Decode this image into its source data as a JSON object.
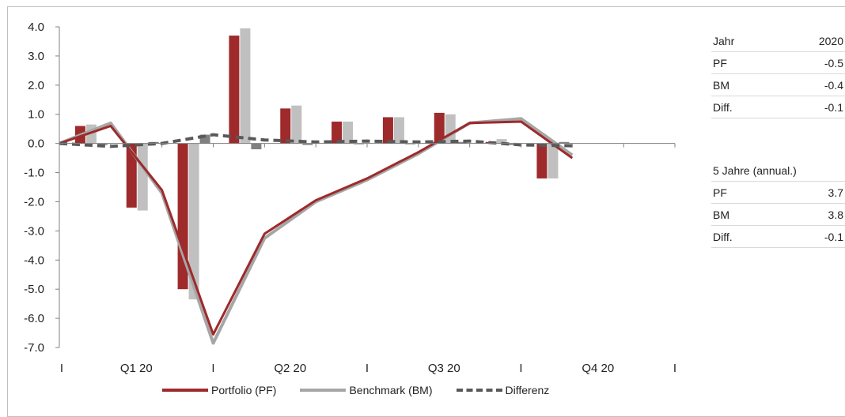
{
  "chart_data": {
    "type": "bar+line",
    "x_groups": [
      "Q1 20",
      "Q2 20",
      "Q3 20",
      "Q4 20"
    ],
    "y_ticks": [
      "4.0",
      "3.0",
      "2.0",
      "1.0",
      "0.0",
      "-1.0",
      "-2.0",
      "-3.0",
      "-4.0",
      "-5.0",
      "-6.0",
      "-7.0"
    ],
    "ylim": [
      -7,
      4
    ],
    "months": 12,
    "bars": {
      "pf": [
        0.6,
        -2.2,
        -5.0,
        3.7,
        1.2,
        0.75,
        0.9,
        1.05,
        0.05,
        -1.2,
        null,
        null
      ],
      "bm": [
        0.65,
        -2.3,
        -5.35,
        3.95,
        1.3,
        0.75,
        0.9,
        1.0,
        0.15,
        -1.2,
        null,
        null
      ],
      "diff": [
        -0.05,
        0.05,
        0.3,
        -0.2,
        -0.05,
        0.0,
        0.0,
        0.05,
        -0.05,
        0.05,
        null,
        null
      ]
    },
    "lines": {
      "pf": [
        0.0,
        0.6,
        -1.6,
        -6.55,
        -3.1,
        -1.95,
        -1.2,
        -0.3,
        0.7,
        0.75,
        -0.5
      ],
      "bm": [
        0.0,
        0.7,
        -1.7,
        -6.85,
        -3.25,
        -2.0,
        -1.25,
        -0.35,
        0.7,
        0.85,
        -0.4
      ],
      "diff": [
        0.0,
        -0.1,
        0.0,
        0.3,
        0.12,
        0.05,
        0.08,
        0.05,
        0.08,
        -0.05,
        -0.08
      ]
    },
    "series": [
      {
        "name": "Portfolio (PF)",
        "color": "#9e2a2b"
      },
      {
        "name": "Benchmark (BM)",
        "color": "#bfbfbf"
      },
      {
        "name": "Differenz",
        "color": "#595959"
      }
    ]
  },
  "legend": {
    "pf": "Portfolio (PF)",
    "bm": "Benchmark (BM)",
    "diff": "Differenz"
  },
  "table_year": {
    "header_label": "Jahr",
    "header_value": "2020",
    "rows": [
      {
        "label": "PF",
        "value": "-0.5"
      },
      {
        "label": "BM",
        "value": "-0.4"
      },
      {
        "label": "Diff.",
        "value": "-0.1"
      }
    ]
  },
  "table_5y": {
    "header_label": "5 Jahre (annual.)",
    "rows": [
      {
        "label": "PF",
        "value": "3.7"
      },
      {
        "label": "BM",
        "value": "3.8"
      },
      {
        "label": "Diff.",
        "value": "-0.1"
      }
    ]
  }
}
